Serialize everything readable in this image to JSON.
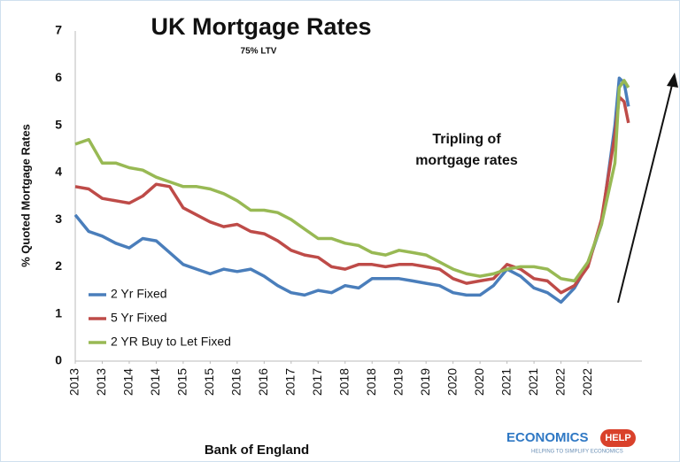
{
  "chart_data": {
    "type": "line",
    "title": "UK Mortgage Rates",
    "subtitle": "75% LTV",
    "annotation": [
      "Tripling of",
      "mortgage rates"
    ],
    "y_label": "% Quoted Mortgage Rates",
    "source": "Bank of England",
    "logo": [
      "ECONOMICS",
      "HELP",
      "HELPING TO SIMPLIFY ECONOMICS"
    ],
    "x": [
      2013,
      2013.25,
      2013.5,
      2013.75,
      2014,
      2014.25,
      2014.5,
      2014.75,
      2015,
      2015.25,
      2015.5,
      2015.75,
      2016,
      2016.25,
      2016.5,
      2016.75,
      2017,
      2017.25,
      2017.5,
      2017.75,
      2018,
      2018.25,
      2018.5,
      2018.75,
      2019,
      2019.25,
      2019.5,
      2019.75,
      2020,
      2020.25,
      2020.5,
      2020.75,
      2021,
      2021.25,
      2021.5,
      2021.75,
      2022,
      2022.25,
      2022.5,
      2022.75,
      2023,
      2023.08,
      2023.17,
      2023.25
    ],
    "series": [
      {
        "name": "2 Yr Fixed",
        "color": "#4a7ebb",
        "values": [
          3.1,
          2.75,
          2.65,
          2.5,
          2.4,
          2.6,
          2.55,
          2.3,
          2.05,
          1.95,
          1.85,
          1.95,
          1.9,
          1.95,
          1.8,
          1.6,
          1.45,
          1.4,
          1.5,
          1.45,
          1.6,
          1.55,
          1.75,
          1.75,
          1.75,
          1.7,
          1.65,
          1.6,
          1.45,
          1.4,
          1.4,
          1.6,
          1.95,
          1.8,
          1.55,
          1.45,
          1.25,
          1.55,
          2.05,
          2.9,
          5.0,
          6.0,
          5.9,
          5.4
        ]
      },
      {
        "name": "5 Yr Fixed",
        "color": "#be4b48",
        "values": [
          3.7,
          3.65,
          3.45,
          3.4,
          3.35,
          3.5,
          3.75,
          3.7,
          3.25,
          3.1,
          2.95,
          2.85,
          2.9,
          2.75,
          2.7,
          2.55,
          2.35,
          2.25,
          2.2,
          2.0,
          1.95,
          2.05,
          2.05,
          2.0,
          2.05,
          2.05,
          2.0,
          1.95,
          1.75,
          1.65,
          1.7,
          1.75,
          2.05,
          1.95,
          1.75,
          1.7,
          1.45,
          1.6,
          2.0,
          3.0,
          4.8,
          5.6,
          5.5,
          5.05
        ]
      },
      {
        "name": "2 YR Buy to Let Fixed",
        "color": "#98b954",
        "values": [
          4.6,
          4.7,
          4.2,
          4.2,
          4.1,
          4.05,
          3.9,
          3.8,
          3.7,
          3.7,
          3.65,
          3.55,
          3.4,
          3.2,
          3.2,
          3.15,
          3.0,
          2.8,
          2.6,
          2.6,
          2.5,
          2.45,
          2.3,
          2.25,
          2.35,
          2.3,
          2.25,
          2.1,
          1.95,
          1.85,
          1.8,
          1.85,
          1.95,
          2.0,
          2.0,
          1.95,
          1.75,
          1.7,
          2.1,
          2.9,
          4.2,
          5.8,
          5.95,
          5.8
        ]
      }
    ],
    "xlim": [
      2013,
      2023.5
    ],
    "xticks": [
      2013,
      {
        "value": 2013.5,
        "label": "2013"
      },
      2014,
      {
        "value": 2014.5,
        "label": "2014"
      },
      2015,
      {
        "value": 2015.5,
        "label": "2015"
      },
      2016,
      {
        "value": 2016.5,
        "label": "2016"
      },
      2017,
      {
        "value": 2017.5,
        "label": "2017"
      },
      2018,
      {
        "value": 2018.5,
        "label": "2018"
      },
      2019,
      {
        "value": 2019.5,
        "label": "2019"
      },
      2020,
      {
        "value": 2020.5,
        "label": "2020"
      },
      2021,
      {
        "value": 2021.5,
        "label": "2021"
      },
      2022,
      {
        "value": 2022.5,
        "label": "2022"
      }
    ],
    "ylim": [
      0,
      7
    ],
    "yticks": [
      0,
      1,
      2,
      3,
      4,
      5,
      6,
      7
    ],
    "grid": false,
    "legend": "lower left"
  }
}
